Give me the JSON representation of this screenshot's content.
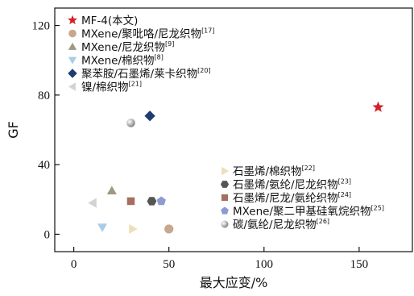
{
  "chart_data": {
    "type": "scatter",
    "xlabel": "最大应变/%",
    "ylabel": "GF",
    "xlim": [
      -10,
      178
    ],
    "ylim": [
      -10,
      130
    ],
    "x_ticks": [
      0,
      50,
      100,
      150
    ],
    "y_ticks": [
      0,
      40,
      80,
      120
    ],
    "grid": false,
    "legend_positions": [
      "top-left",
      "bottom-right"
    ],
    "series": [
      {
        "name": "MF-4(本文)",
        "ref": "",
        "marker": "star",
        "color": "#d42027",
        "points": [
          {
            "x": 160,
            "y": 73
          }
        ]
      },
      {
        "name": "MXene/聚吡咯/尼龙织物",
        "ref": "[17]",
        "marker": "circle",
        "color": "#c9a68e",
        "points": [
          {
            "x": 50,
            "y": 3
          }
        ]
      },
      {
        "name": "MXene/尼龙织物",
        "ref": "[9]",
        "marker": "triangle-up",
        "color": "#9c9a83",
        "points": [
          {
            "x": 20,
            "y": 25
          }
        ]
      },
      {
        "name": "MXene/棉织物",
        "ref": "[8]",
        "marker": "triangle-down",
        "color": "#a9cde9",
        "points": [
          {
            "x": 15,
            "y": 4
          }
        ]
      },
      {
        "name": "聚苯胺/石墨烯/莱卡织物",
        "ref": "[20]",
        "marker": "diamond",
        "color": "#1f3b73",
        "points": [
          {
            "x": 40,
            "y": 68
          }
        ]
      },
      {
        "name": "镍/棉织物",
        "ref": "[21]",
        "marker": "triangle-left",
        "color": "#d3d3d3",
        "points": [
          {
            "x": 10,
            "y": 18
          }
        ]
      },
      {
        "name": "石墨烯/棉织物",
        "ref": "[22]",
        "marker": "triangle-right",
        "color": "#eedfb8",
        "points": [
          {
            "x": 31,
            "y": 3
          }
        ]
      },
      {
        "name": "石墨烯/氨纶/尼龙织物",
        "ref": "[23]",
        "marker": "hexagon",
        "color": "#555555",
        "points": [
          {
            "x": 41,
            "y": 19
          }
        ]
      },
      {
        "name": "石墨烯/尼龙/氨纶织物",
        "ref": "[24]",
        "marker": "square",
        "color": "#a56f5f",
        "points": [
          {
            "x": 30,
            "y": 19
          }
        ]
      },
      {
        "name": "MXene/聚二甲基硅氧烷织物",
        "ref": "[25]",
        "marker": "pentagon",
        "color": "#8e9bd0",
        "points": [
          {
            "x": 46,
            "y": 19
          }
        ]
      },
      {
        "name": "碳/氨纶/尼龙织物",
        "ref": "[26]",
        "marker": "sphere",
        "color": "#a9a9a9",
        "points": [
          {
            "x": 30,
            "y": 64
          }
        ]
      }
    ]
  }
}
